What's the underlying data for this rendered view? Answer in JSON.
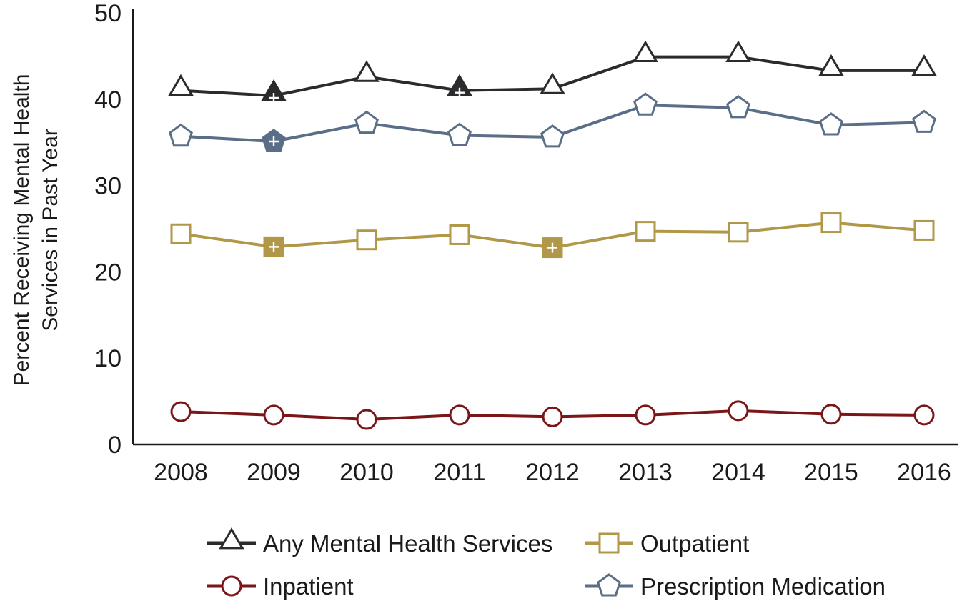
{
  "chart_data": {
    "type": "line",
    "title": "",
    "xlabel": "",
    "ylabel_lines": [
      "Percent Receiving Mental Health",
      "Services in Past Year"
    ],
    "categories": [
      "2008",
      "2009",
      "2010",
      "2011",
      "2012",
      "2013",
      "2014",
      "2015",
      "2016"
    ],
    "ylim": [
      0,
      50
    ],
    "yticks": [
      "0",
      "10",
      "20",
      "30",
      "40",
      "50"
    ],
    "grid": false,
    "legend_position": "bottom",
    "series": [
      {
        "name": "Any Mental Health Services",
        "marker": "triangle",
        "color": "#2b2b2e",
        "values": [
          41.0,
          40.4,
          42.6,
          41.0,
          41.2,
          44.9,
          44.9,
          43.3,
          43.3
        ],
        "significant": [
          false,
          true,
          false,
          true,
          false,
          false,
          false,
          false,
          false
        ]
      },
      {
        "name": "Prescription Medication",
        "marker": "pentagon",
        "color": "#5a6f87",
        "values": [
          35.7,
          35.1,
          37.2,
          35.8,
          35.6,
          39.3,
          39.0,
          37.0,
          37.3
        ],
        "significant": [
          false,
          true,
          false,
          false,
          false,
          false,
          false,
          false,
          false
        ]
      },
      {
        "name": "Outpatient",
        "marker": "square",
        "color": "#b09848",
        "values": [
          24.4,
          22.9,
          23.7,
          24.3,
          22.8,
          24.7,
          24.6,
          25.7,
          24.8
        ],
        "significant": [
          false,
          true,
          false,
          false,
          true,
          false,
          false,
          false,
          false
        ]
      },
      {
        "name": "Inpatient",
        "marker": "circle",
        "color": "#7a1618",
        "values": [
          3.8,
          3.4,
          2.9,
          3.4,
          3.2,
          3.4,
          3.9,
          3.5,
          3.4
        ],
        "significant": [
          false,
          false,
          false,
          false,
          false,
          false,
          false,
          false,
          false
        ]
      }
    ],
    "legend_order": [
      "Any Mental Health Services",
      "Outpatient",
      "Inpatient",
      "Prescription Medication"
    ]
  }
}
